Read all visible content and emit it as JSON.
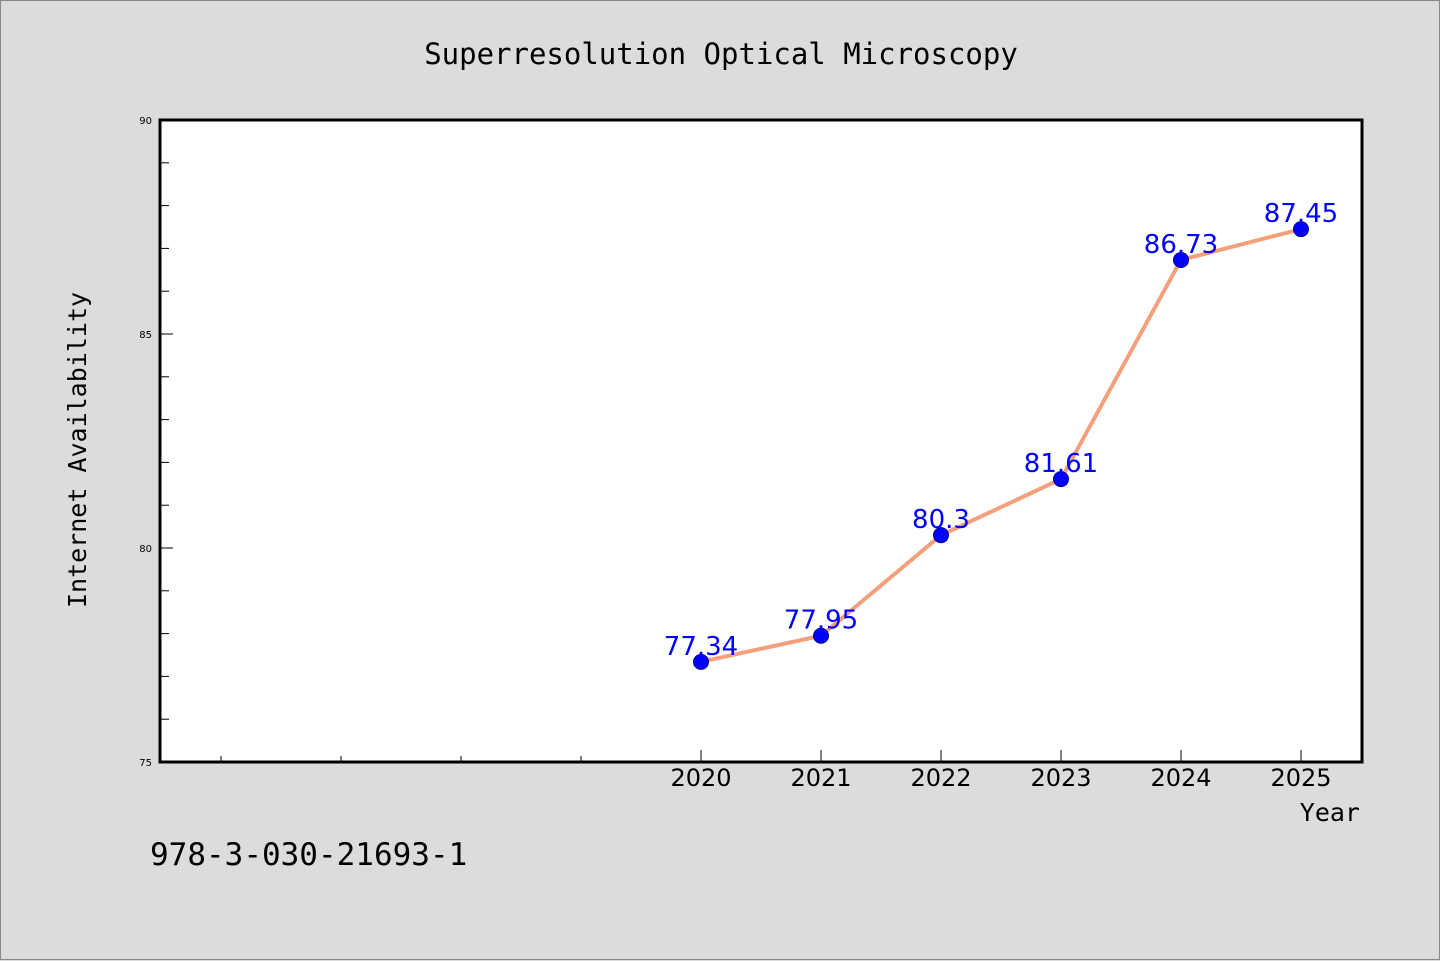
{
  "chart_data": {
    "type": "line",
    "title": "Superresolution Optical Microscopy",
    "xlabel": "Year",
    "ylabel": "Internet Availability",
    "x": [
      2020,
      2021,
      2022,
      2023,
      2024,
      2025
    ],
    "x_tick_labels": [
      "2020",
      "2021",
      "2022",
      "2023",
      "2024",
      "2025"
    ],
    "y_ticks": [
      75,
      80,
      85,
      90
    ],
    "y_tick_labels": [
      "75",
      "80",
      "85",
      "90"
    ],
    "ylim": [
      75,
      90
    ],
    "grid": false,
    "series": [
      {
        "values": [
          77.34,
          77.95,
          80.3,
          81.61,
          86.73,
          87.45
        ],
        "labels": [
          "77.34",
          "77.95",
          "80.3",
          "81.61",
          "86.73",
          "87.45"
        ],
        "line_color": "#f4a07d",
        "marker_color": "#0000ff"
      }
    ],
    "data_label_color": "#0000ff"
  },
  "footer": {
    "text": "978-3-030-21693-1"
  }
}
